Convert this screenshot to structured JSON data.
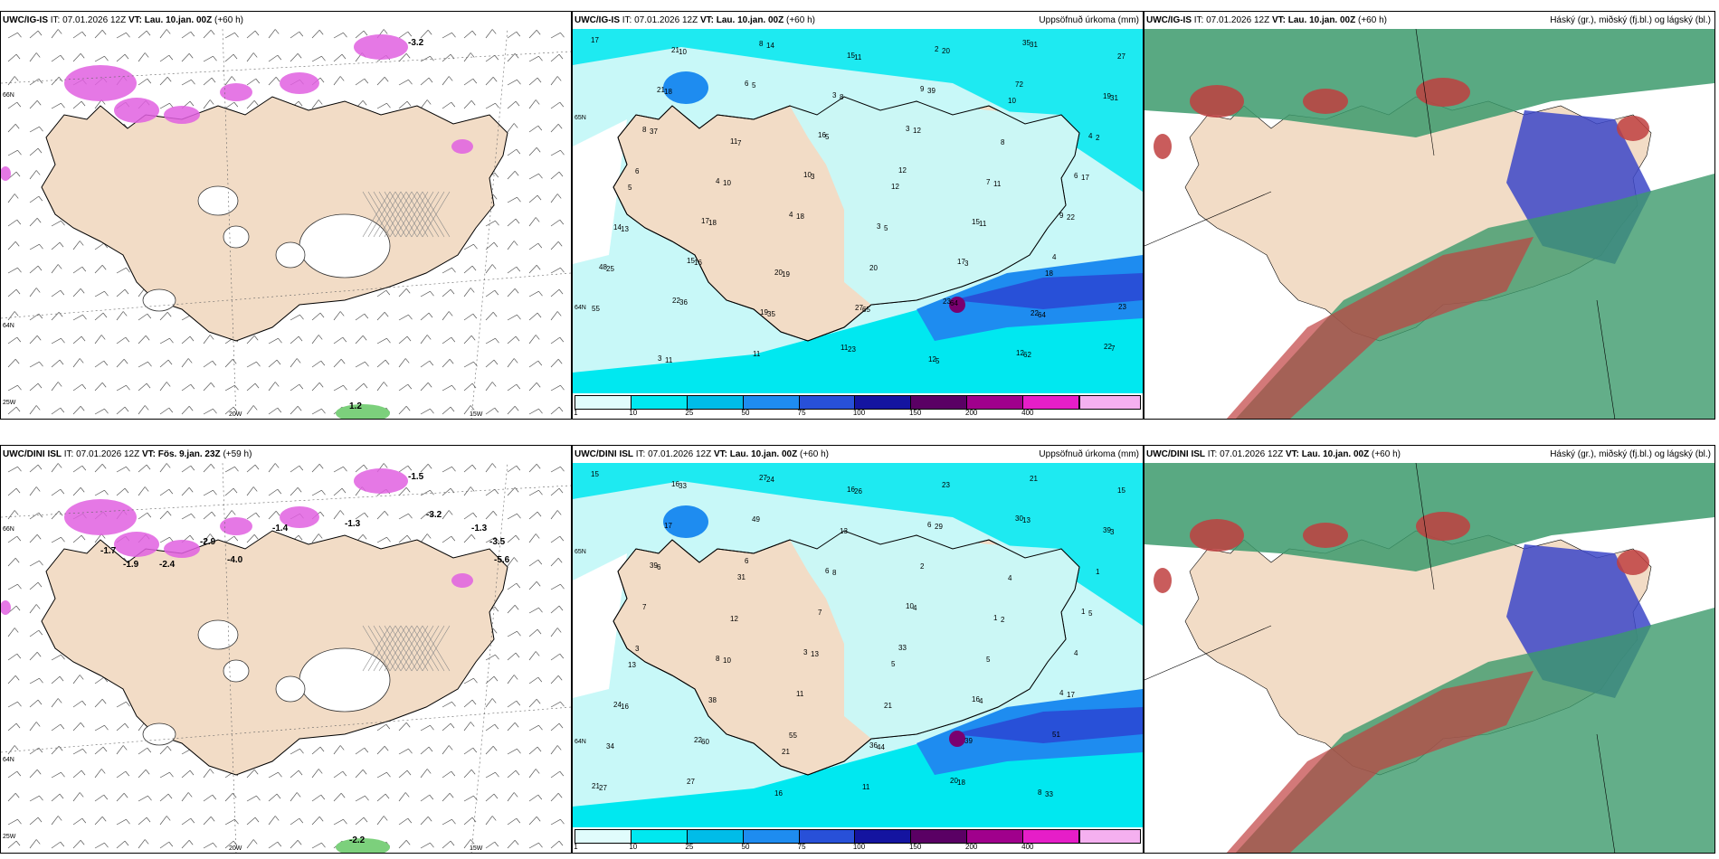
{
  "panels": [
    {
      "id": "p1",
      "model": "UWC/IG-IS",
      "it": "IT: 07.01.2026 12Z",
      "vt_label": "VT:",
      "vt": "Lau. 10.jan. 00Z",
      "lead": "(+60 h)",
      "right_title": "",
      "kind": "wind",
      "lat_labels": [
        "66N",
        "64N"
      ],
      "lon_labels": [
        "20W",
        "15W",
        "25W"
      ],
      "values": [
        "-3.2",
        "1.2"
      ]
    },
    {
      "id": "p2",
      "model": "UWC/IG-IS",
      "it": "IT: 07.01.2026 12Z",
      "vt_label": "VT:",
      "vt": "Lau. 10.jan. 00Z",
      "lead": "(+60 h)",
      "right_title": "Uppsöfnuð úrkoma (mm)",
      "kind": "precip",
      "lat_labels": [
        "65N",
        "64N"
      ],
      "values": [
        "17",
        "10",
        "14",
        "11",
        "20",
        "31",
        "27",
        "21",
        "8",
        "15",
        "2",
        "35",
        "31",
        "18",
        "5",
        "8",
        "39",
        "72",
        "19",
        "21",
        "6",
        "3",
        "9",
        "10",
        "2",
        "37",
        "7",
        "5",
        "12",
        "8",
        "4",
        "8",
        "11",
        "16",
        "3",
        "11",
        "17",
        "6",
        "10",
        "3",
        "12",
        "7",
        "6",
        "5",
        "4",
        "10",
        "12",
        "11",
        "22",
        "13",
        "18",
        "18",
        "5",
        "15",
        "9",
        "14",
        "17",
        "4",
        "3",
        "3",
        "4",
        "25",
        "16",
        "19",
        "20",
        "17",
        "18",
        "48",
        "15",
        "20",
        "65",
        "64",
        "64",
        "55",
        "36",
        "35",
        "27",
        "23",
        "22",
        "23",
        "22",
        "19",
        "23",
        "5",
        "62",
        "7",
        "11",
        "11",
        "11",
        "12",
        "12",
        "22",
        "3"
      ]
    },
    {
      "id": "p3",
      "model": "UWC/IG-IS",
      "it": "IT: 07.01.2026 12Z",
      "vt_label": "VT:",
      "vt": "Lau. 10.jan. 00Z",
      "lead": "(+60 h)",
      "right_title": "Háský (gr.), miðský (fj.bl.) og lágský (bl.)",
      "kind": "cloud"
    },
    {
      "id": "p4",
      "model": "UWC/DINI ISL",
      "it": "IT: 07.01.2026 12Z",
      "vt_label": "VT:",
      "vt": "Fös. 9.jan. 23Z",
      "lead": "(+59 h)",
      "right_title": "",
      "kind": "wind",
      "lat_labels": [
        "66N",
        "64N"
      ],
      "lon_labels": [
        "20W",
        "15W",
        "25W"
      ],
      "values": [
        "-1.5",
        "-2.2",
        "-2.9",
        "-1.4",
        "-1.3",
        "-3.2",
        "-1.3",
        "-1.9",
        "-2.4",
        "-4.0",
        "-1.7",
        "-3.5",
        "-5.6"
      ]
    },
    {
      "id": "p5",
      "model": "UWC/DINI ISL",
      "it": "IT: 07.01.2026 12Z",
      "vt_label": "VT:",
      "vt": "Lau. 10.jan. 00Z",
      "lead": "(+60 h)",
      "right_title": "Uppsöfnuð úrkoma (mm)",
      "kind": "precip",
      "lat_labels": [
        "65N",
        "64N"
      ],
      "values": [
        "15",
        "33",
        "24",
        "26",
        "23",
        "21",
        "15",
        "16",
        "27",
        "16",
        "29",
        "13",
        "3",
        "17",
        "49",
        "13",
        "6",
        "30",
        "39",
        "6",
        "6",
        "8",
        "2",
        "4",
        "1",
        "39",
        "31",
        "6",
        "4",
        "2",
        "5",
        "7",
        "12",
        "7",
        "10",
        "1",
        "1",
        "3",
        "10",
        "13",
        "33",
        "5",
        "4",
        "13",
        "8",
        "3",
        "5",
        "4",
        "17",
        "16",
        "38",
        "11",
        "21",
        "16",
        "4",
        "24",
        "60",
        "55",
        "44",
        "39",
        "51",
        "34",
        "22",
        "21",
        "36",
        "18",
        "33",
        "27",
        "27",
        "16",
        "11",
        "20",
        "8",
        "21"
      ]
    },
    {
      "id": "p6",
      "model": "UWC/DINI ISL",
      "it": "IT: 07.01.2026 12Z",
      "vt_label": "VT:",
      "vt": "Lau. 10.jan. 00Z",
      "lead": "(+60 h)",
      "right_title": "Háský (gr.), miðský (fj.bl.) og lágský (bl.)",
      "kind": "cloud"
    }
  ],
  "colorbar": {
    "ticks": [
      "1",
      "10",
      "25",
      "50",
      "75",
      "100",
      "150",
      "200",
      "400"
    ],
    "colors": [
      "#e0fcfc",
      "#00e8f0",
      "#00bce8",
      "#1e8cf0",
      "#2850d8",
      "#1414a0",
      "#5a0064",
      "#a0008c",
      "#e61ec8"
    ],
    "last_color": "#f5b0f0"
  },
  "palette": {
    "land": "#f2dcc6",
    "sea": "#ffffff",
    "precip_light": "#c8f8f8",
    "precip_mid": "#00e8f0",
    "precip_dark": "#1e8cf0",
    "precip_heavy": "#2850d8",
    "wind_pink": "#e060e0",
    "high_cloud": "#3c9a6c",
    "mid_cloud": "#3c46c8",
    "low_cloud": "#c04040"
  }
}
